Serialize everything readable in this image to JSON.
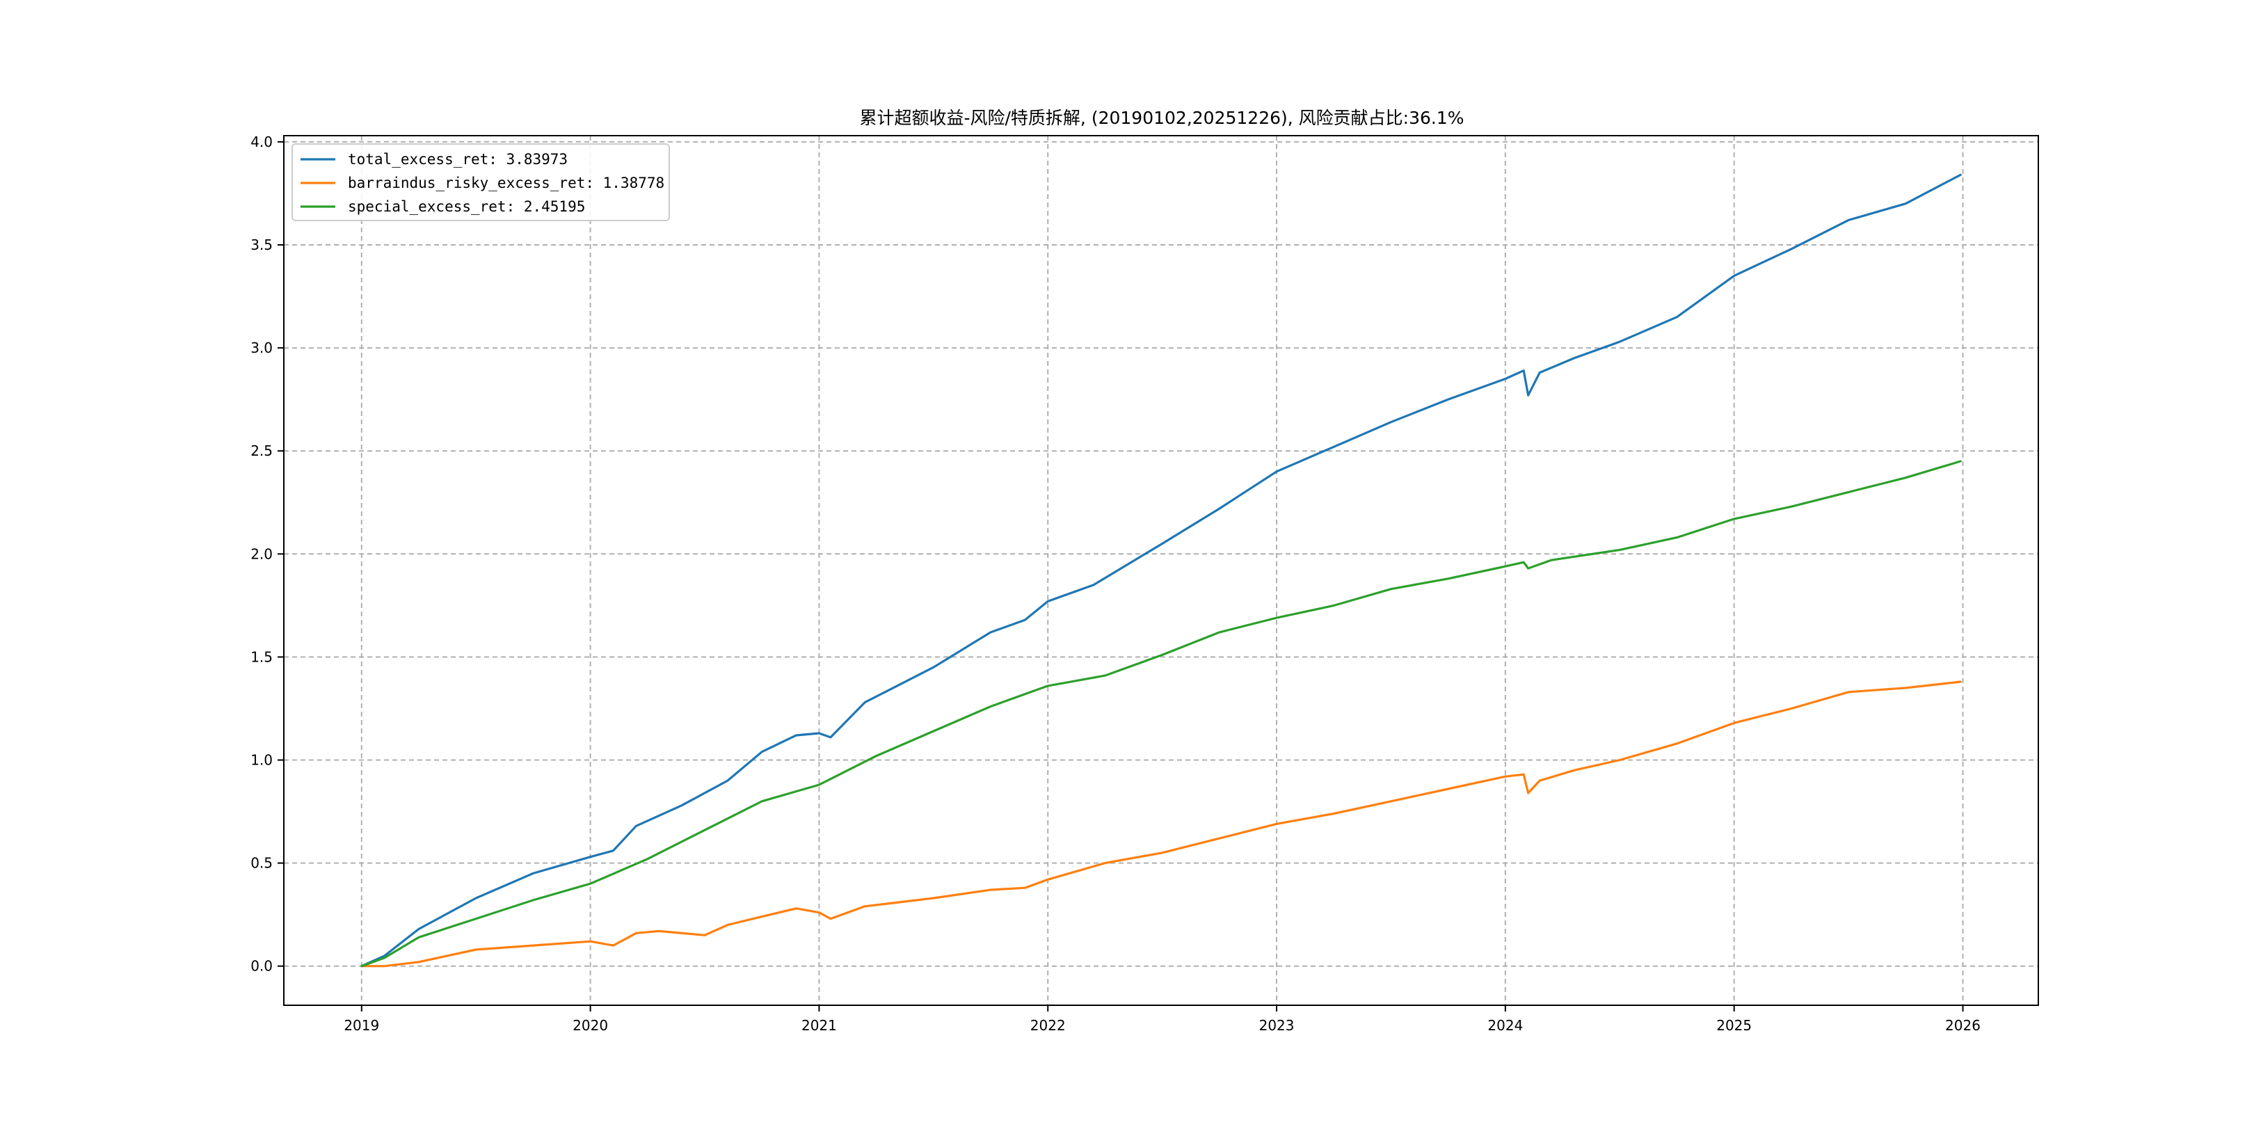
{
  "chart_data": {
    "type": "line",
    "title": "累计超额收益-风险/特质拆解, (20190102,20251226), 风险贡献占比:36.1%",
    "xlabel": "",
    "ylabel": "",
    "xlim": [
      2018.66,
      2026.33
    ],
    "ylim": [
      -0.19,
      4.03
    ],
    "x_ticks": [
      2019,
      2020,
      2021,
      2022,
      2023,
      2024,
      2025,
      2026
    ],
    "x_tick_labels": [
      "2019",
      "2020",
      "2021",
      "2022",
      "2023",
      "2024",
      "2025",
      "2026"
    ],
    "y_ticks": [
      0.0,
      0.5,
      1.0,
      1.5,
      2.0,
      2.5,
      3.0,
      3.5,
      4.0
    ],
    "y_tick_labels": [
      "0.0",
      "0.5",
      "1.0",
      "1.5",
      "2.0",
      "2.5",
      "3.0",
      "3.5",
      "4.0"
    ],
    "grid": true,
    "legend_position": "top-left",
    "series": [
      {
        "name": "total_excess_ret: 3.83973",
        "color": "#1f77b4",
        "x": [
          2019.0,
          2019.1,
          2019.25,
          2019.5,
          2019.75,
          2020.0,
          2020.1,
          2020.2,
          2020.4,
          2020.6,
          2020.75,
          2020.9,
          2021.0,
          2021.05,
          2021.2,
          2021.5,
          2021.75,
          2021.9,
          2022.0,
          2022.2,
          2022.5,
          2022.75,
          2023.0,
          2023.25,
          2023.5,
          2023.75,
          2024.0,
          2024.08,
          2024.1,
          2024.15,
          2024.3,
          2024.5,
          2024.75,
          2025.0,
          2025.25,
          2025.5,
          2025.75,
          2025.99
        ],
        "values": [
          0.0,
          0.05,
          0.18,
          0.33,
          0.45,
          0.53,
          0.56,
          0.68,
          0.78,
          0.9,
          1.04,
          1.12,
          1.13,
          1.11,
          1.28,
          1.45,
          1.62,
          1.68,
          1.77,
          1.85,
          2.05,
          2.22,
          2.4,
          2.52,
          2.64,
          2.75,
          2.85,
          2.89,
          2.77,
          2.88,
          2.95,
          3.03,
          3.15,
          3.35,
          3.48,
          3.62,
          3.7,
          3.84
        ]
      },
      {
        "name": "barraindus_risky_excess_ret: 1.38778",
        "color": "#ff7f0e",
        "x": [
          2019.0,
          2019.1,
          2019.25,
          2019.5,
          2019.75,
          2020.0,
          2020.1,
          2020.2,
          2020.3,
          2020.5,
          2020.6,
          2020.75,
          2020.9,
          2021.0,
          2021.05,
          2021.2,
          2021.5,
          2021.75,
          2021.9,
          2022.0,
          2022.25,
          2022.5,
          2022.75,
          2023.0,
          2023.25,
          2023.5,
          2023.75,
          2024.0,
          2024.08,
          2024.1,
          2024.15,
          2024.3,
          2024.5,
          2024.75,
          2025.0,
          2025.25,
          2025.5,
          2025.75,
          2025.99
        ],
        "values": [
          0.0,
          0.0,
          0.02,
          0.08,
          0.1,
          0.12,
          0.1,
          0.16,
          0.17,
          0.15,
          0.2,
          0.24,
          0.28,
          0.26,
          0.23,
          0.29,
          0.33,
          0.37,
          0.38,
          0.42,
          0.5,
          0.55,
          0.62,
          0.69,
          0.74,
          0.8,
          0.86,
          0.92,
          0.93,
          0.84,
          0.9,
          0.95,
          1.0,
          1.08,
          1.18,
          1.25,
          1.33,
          1.35,
          1.38
        ]
      },
      {
        "name": "special_excess_ret: 2.45195",
        "color": "#2ca02c",
        "x": [
          2019.0,
          2019.1,
          2019.25,
          2019.5,
          2019.75,
          2020.0,
          2020.25,
          2020.5,
          2020.75,
          2021.0,
          2021.25,
          2021.5,
          2021.75,
          2022.0,
          2022.25,
          2022.5,
          2022.75,
          2023.0,
          2023.25,
          2023.5,
          2023.75,
          2024.0,
          2024.08,
          2024.1,
          2024.2,
          2024.5,
          2024.75,
          2025.0,
          2025.25,
          2025.5,
          2025.75,
          2025.99
        ],
        "values": [
          0.0,
          0.04,
          0.14,
          0.23,
          0.32,
          0.4,
          0.52,
          0.66,
          0.8,
          0.88,
          1.02,
          1.14,
          1.26,
          1.36,
          1.41,
          1.51,
          1.62,
          1.69,
          1.75,
          1.83,
          1.88,
          1.94,
          1.96,
          1.93,
          1.97,
          2.02,
          2.08,
          2.17,
          2.23,
          2.3,
          2.37,
          2.45
        ]
      }
    ]
  }
}
